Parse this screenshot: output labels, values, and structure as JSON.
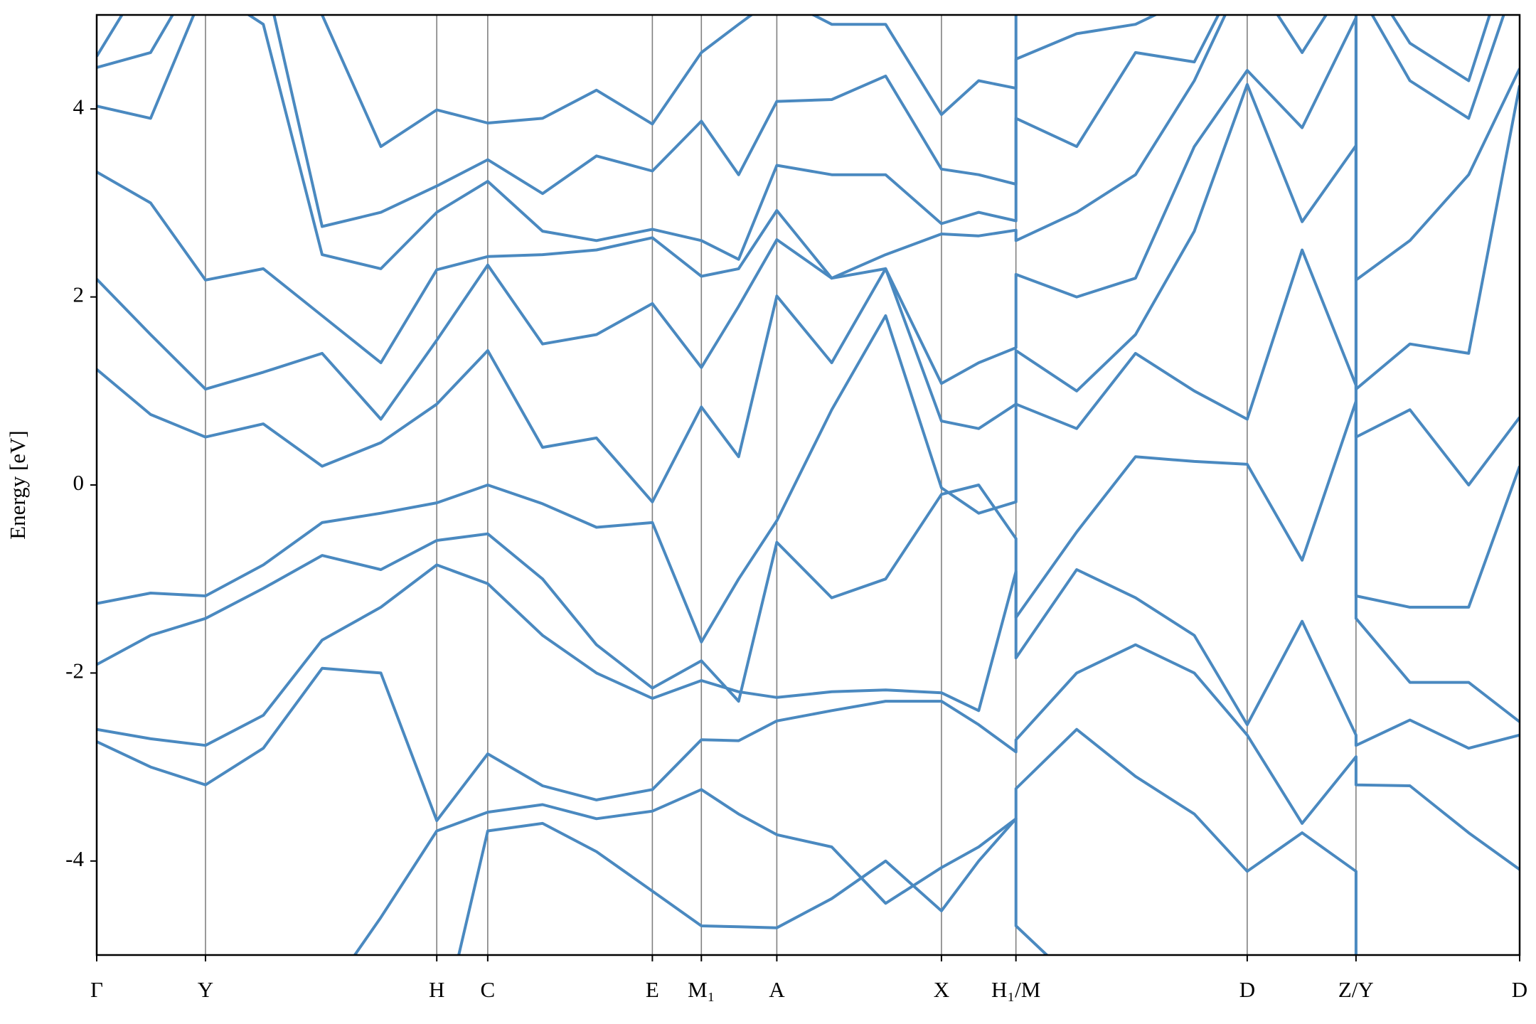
{
  "chart_data": {
    "type": "line",
    "ylabel": "Energy [eV]",
    "ylim": [
      -5,
      5
    ],
    "yticks": [
      -4,
      -2,
      0,
      2,
      4
    ],
    "xlim": [
      0,
      14.52
    ],
    "xticks": [
      {
        "value": 0,
        "label": "Γ"
      },
      {
        "value": 1.11,
        "label": "Y"
      },
      {
        "value": 3.47,
        "label": "H"
      },
      {
        "value": 3.99,
        "label": "C"
      },
      {
        "value": 5.67,
        "label": "E"
      },
      {
        "value": 6.17,
        "label": "M₁"
      },
      {
        "value": 6.94,
        "label": "A"
      },
      {
        "value": 8.62,
        "label": "X"
      },
      {
        "value": 9.38,
        "label": "H₁/M"
      },
      {
        "value": 11.74,
        "label": "D"
      },
      {
        "value": 12.85,
        "label": "Z/Y"
      },
      {
        "value": 14.52,
        "label": "D"
      }
    ],
    "grid": true,
    "x": [
      0,
      0.55,
      1.11,
      1.7,
      2.3,
      2.9,
      3.47,
      3.99,
      4.55,
      5.1,
      5.67,
      6.17,
      6.55,
      6.94,
      7.5,
      8.05,
      8.62,
      9.0,
      9.38,
      9.38,
      10.0,
      10.6,
      11.2,
      11.74,
      12.3,
      12.85,
      12.85,
      13.4,
      14.0,
      14.52
    ],
    "series": [
      {
        "color": "#4a89c0",
        "values": [
          -6,
          -6,
          -6,
          -6,
          -6,
          -6,
          -6,
          -3.68,
          -3.6,
          -3.9,
          -4.32,
          -4.69,
          -4.7,
          -4.71,
          -4.4,
          -4.0,
          -4.53,
          -4.0,
          -3.55,
          -4.69,
          -5.3,
          -5.4,
          -5.5,
          -5.6,
          -5.6,
          -5.6,
          -6,
          -6,
          -6,
          -6
        ]
      },
      {
        "color": "#4a89c0",
        "values": [
          -6,
          -6,
          -6,
          -6,
          -5.5,
          -4.6,
          -3.68,
          -3.48,
          -3.4,
          -3.55,
          -3.47,
          -3.24,
          -3.5,
          -3.72,
          -3.85,
          -4.45,
          -4.07,
          -3.85,
          -3.55,
          -3.23,
          -2.6,
          -3.1,
          -3.5,
          -4.11,
          -3.7,
          -4.11,
          -6,
          -6,
          -6,
          -6
        ]
      },
      {
        "color": "#4a89c0",
        "values": [
          -2.73,
          -3.0,
          -3.19,
          -2.8,
          -1.95,
          -2.0,
          -3.57,
          -2.86,
          -3.2,
          -3.35,
          -3.24,
          -2.71,
          -2.72,
          -2.51,
          -2.4,
          -2.3,
          -2.3,
          -2.55,
          -2.84,
          -2.71,
          -2.0,
          -1.7,
          -2.0,
          -2.66,
          -3.6,
          -2.89,
          -3.19,
          -3.2,
          -3.7,
          -4.09
        ]
      },
      {
        "color": "#4a89c0",
        "values": [
          -2.6,
          -2.7,
          -2.77,
          -2.45,
          -1.65,
          -1.3,
          -0.85,
          -1.05,
          -1.6,
          -2.0,
          -2.27,
          -2.08,
          -2.2,
          -2.26,
          -2.2,
          -2.18,
          -2.21,
          -2.4,
          -0.92,
          -1.84,
          -0.9,
          -1.2,
          -1.6,
          -2.55,
          -1.45,
          -2.66,
          -2.77,
          -2.5,
          -2.8,
          -2.66
        ]
      },
      {
        "color": "#4a89c0",
        "values": [
          -1.91,
          -1.6,
          -1.42,
          -1.1,
          -0.75,
          -0.9,
          -0.59,
          -0.52,
          -1.0,
          -1.7,
          -2.16,
          -1.87,
          -2.3,
          -0.61,
          -1.2,
          -1.0,
          -0.1,
          0.0,
          -0.57,
          -1.41,
          -0.5,
          0.3,
          0.25,
          0.22,
          -0.8,
          0.89,
          -1.42,
          -2.1,
          -2.1,
          -2.52
        ]
      },
      {
        "color": "#4a89c0",
        "values": [
          -1.26,
          -1.15,
          -1.18,
          -0.85,
          -0.4,
          -0.3,
          -0.19,
          0.0,
          -0.2,
          -0.45,
          -0.4,
          -1.67,
          -1.0,
          -0.38,
          0.8,
          1.8,
          -0.03,
          -0.3,
          -0.18,
          0.86,
          0.6,
          1.4,
          1.0,
          0.7,
          2.5,
          1.06,
          -1.18,
          -1.3,
          -1.3,
          0.2
        ]
      },
      {
        "color": "#4a89c0",
        "values": [
          1.23,
          0.75,
          0.51,
          0.65,
          0.2,
          0.45,
          0.86,
          1.43,
          0.4,
          0.5,
          -0.18,
          0.83,
          0.3,
          2.01,
          1.3,
          2.3,
          0.68,
          0.6,
          0.86,
          1.43,
          1.0,
          1.6,
          2.7,
          4.26,
          2.8,
          3.61,
          0.51,
          0.8,
          0.0,
          0.72
        ]
      },
      {
        "color": "#4a89c0",
        "values": [
          2.19,
          1.6,
          1.02,
          1.2,
          1.4,
          0.7,
          1.54,
          2.34,
          1.5,
          1.6,
          1.93,
          1.25,
          1.9,
          2.61,
          2.2,
          2.3,
          1.08,
          1.3,
          1.46,
          2.24,
          2.0,
          2.2,
          3.6,
          4.41,
          3.8,
          4.97,
          1.02,
          1.5,
          1.4,
          4.25
        ]
      },
      {
        "color": "#4a89c0",
        "values": [
          3.33,
          3.0,
          2.18,
          2.3,
          1.8,
          1.3,
          2.29,
          2.43,
          2.45,
          2.5,
          2.63,
          2.22,
          2.3,
          2.92,
          2.2,
          2.45,
          2.67,
          2.65,
          2.71,
          2.6,
          2.9,
          3.3,
          4.3,
          5.5,
          4.6,
          5.5,
          2.18,
          2.6,
          3.3,
          4.43
        ]
      },
      {
        "color": "#4a89c0",
        "values": [
          4.03,
          3.9,
          5.3,
          4.9,
          2.45,
          2.3,
          2.9,
          3.23,
          2.7,
          2.6,
          2.72,
          2.6,
          2.4,
          3.4,
          3.3,
          3.3,
          2.78,
          2.9,
          2.81,
          3.9,
          3.6,
          4.6,
          4.5,
          5.6,
          5.6,
          5.6,
          5.3,
          4.3,
          3.9,
          5.5
        ]
      },
      {
        "color": "#4a89c0",
        "values": [
          4.44,
          4.6,
          5.6,
          5.5,
          2.75,
          2.9,
          3.18,
          3.46,
          3.1,
          3.5,
          3.34,
          3.87,
          3.3,
          4.08,
          4.1,
          4.35,
          3.36,
          3.3,
          3.2,
          4.53,
          4.8,
          4.9,
          5.2,
          5.8,
          5.8,
          5.8,
          5.6,
          4.7,
          4.3,
          6
        ]
      },
      {
        "color": "#4a89c0",
        "values": [
          4.56,
          5.5,
          6,
          6,
          5.0,
          3.6,
          3.99,
          3.85,
          3.9,
          4.2,
          3.84,
          4.6,
          4.9,
          5.2,
          4.9,
          4.9,
          3.94,
          4.3,
          4.22,
          5.2,
          5.2,
          5.3,
          5.5,
          6,
          6,
          6,
          6,
          6,
          6,
          6
        ]
      }
    ]
  }
}
